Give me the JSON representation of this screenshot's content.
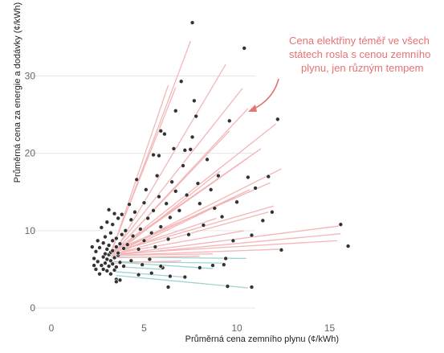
{
  "chart_data": {
    "type": "scatter",
    "xlabel": "Průměrná cena zemního plynu (¢/kWh)",
    "ylabel": "Průměrná cena za energie a dodávky (¢/kWh)",
    "xlim": [
      0,
      16
    ],
    "ylim": [
      0,
      37
    ],
    "xticks": [
      0,
      5,
      10,
      15
    ],
    "yticks": [
      0,
      10,
      20,
      30
    ],
    "grid": true,
    "annotation": {
      "lines": [
        "Cena elektřiny téměř ve všech",
        "státech rosla s cenou zemního",
        "plynu, jen různým tempem"
      ],
      "color": "#e57373"
    },
    "colors": {
      "points": "#333333",
      "rising_lines": "#f4b6b6",
      "falling_lines": "#9fd4d0"
    },
    "points": [
      [
        2.2,
        7.9
      ],
      [
        2.3,
        5.5
      ],
      [
        2.3,
        6.4
      ],
      [
        2.4,
        5.0
      ],
      [
        2.4,
        7.3
      ],
      [
        2.5,
        8.7
      ],
      [
        2.5,
        6.0
      ],
      [
        2.6,
        4.4
      ],
      [
        2.6,
        7.8
      ],
      [
        2.7,
        5.5
      ],
      [
        2.7,
        10.4
      ],
      [
        2.8,
        6.6
      ],
      [
        2.8,
        8.4
      ],
      [
        2.8,
        5.0
      ],
      [
        2.9,
        7.0
      ],
      [
        2.9,
        9.2
      ],
      [
        2.9,
        5.8
      ],
      [
        3.0,
        6.3
      ],
      [
        3.0,
        7.6
      ],
      [
        3.0,
        4.8
      ],
      [
        3.0,
        11.1
      ],
      [
        3.1,
        12.7
      ],
      [
        3.1,
        5.4
      ],
      [
        3.1,
        8.1
      ],
      [
        3.1,
        6.9
      ],
      [
        3.2,
        7.2
      ],
      [
        3.2,
        9.7
      ],
      [
        3.2,
        4.4
      ],
      [
        3.2,
        6.1
      ],
      [
        3.3,
        8.7
      ],
      [
        3.3,
        5.7
      ],
      [
        3.3,
        7.4
      ],
      [
        3.3,
        10.8
      ],
      [
        3.4,
        6.5
      ],
      [
        3.4,
        4.9
      ],
      [
        3.4,
        12.2
      ],
      [
        3.5,
        7.9
      ],
      [
        3.5,
        5.3
      ],
      [
        3.5,
        9.0
      ],
      [
        3.5,
        3.7
      ],
      [
        3.6,
        6.8
      ],
      [
        3.6,
        11.6
      ],
      [
        3.6,
        7.1
      ],
      [
        3.7,
        8.3
      ],
      [
        3.7,
        5.9
      ],
      [
        3.8,
        12.1
      ],
      [
        3.8,
        9.5
      ],
      [
        3.9,
        7.7
      ],
      [
        3.9,
        5.4
      ],
      [
        4.0,
        10.0
      ],
      [
        4.1,
        8.2
      ],
      [
        4.2,
        13.4
      ],
      [
        4.3,
        6.1
      ],
      [
        4.3,
        11.4
      ],
      [
        4.4,
        9.3
      ],
      [
        4.5,
        12.4
      ],
      [
        4.6,
        16.6
      ],
      [
        4.7,
        7.6
      ],
      [
        4.8,
        10.2
      ],
      [
        4.9,
        5.6
      ],
      [
        5.0,
        13.6
      ],
      [
        5.0,
        8.7
      ],
      [
        5.1,
        15.3
      ],
      [
        5.2,
        11.6
      ],
      [
        5.3,
        6.3
      ],
      [
        5.4,
        9.7
      ],
      [
        5.5,
        19.8
      ],
      [
        5.5,
        12.6
      ],
      [
        5.6,
        7.9
      ],
      [
        5.7,
        17.1
      ],
      [
        5.8,
        19.7
      ],
      [
        5.8,
        14.4
      ],
      [
        5.9,
        10.5
      ],
      [
        5.9,
        22.9
      ],
      [
        6.0,
        5.2
      ],
      [
        6.1,
        22.5
      ],
      [
        6.2,
        13.5
      ],
      [
        6.3,
        8.9
      ],
      [
        6.4,
        11.7
      ],
      [
        6.5,
        16.3
      ],
      [
        6.6,
        20.6
      ],
      [
        6.7,
        25.5
      ],
      [
        6.7,
        15.1
      ],
      [
        6.9,
        12.6
      ],
      [
        7.0,
        29.3
      ],
      [
        7.1,
        18.4
      ],
      [
        7.2,
        20.4
      ],
      [
        7.3,
        14.6
      ],
      [
        7.4,
        9.5
      ],
      [
        7.5,
        20.5
      ],
      [
        7.6,
        36.9
      ],
      [
        7.6,
        22.1
      ],
      [
        7.7,
        26.8
      ],
      [
        7.8,
        24.8
      ],
      [
        7.9,
        16.1
      ],
      [
        8.0,
        13.5
      ],
      [
        8.2,
        10.7
      ],
      [
        8.4,
        19.2
      ],
      [
        8.6,
        15.3
      ],
      [
        8.8,
        12.9
      ],
      [
        9.0,
        17.1
      ],
      [
        9.2,
        11.8
      ],
      [
        9.4,
        6.4
      ],
      [
        9.6,
        24.2
      ],
      [
        9.8,
        8.7
      ],
      [
        10.0,
        13.7
      ],
      [
        10.4,
        33.6
      ],
      [
        10.6,
        16.9
      ],
      [
        10.8,
        9.4
      ],
      [
        11.0,
        15.5
      ],
      [
        11.4,
        11.3
      ],
      [
        11.7,
        17.0
      ],
      [
        11.9,
        12.4
      ],
      [
        12.2,
        24.4
      ],
      [
        12.4,
        7.5
      ],
      [
        15.6,
        10.8
      ],
      [
        16.0,
        8.0
      ],
      [
        6.3,
        2.7
      ],
      [
        9.5,
        2.8
      ],
      [
        10.8,
        2.7
      ],
      [
        3.5,
        3.4
      ],
      [
        3.7,
        3.6
      ],
      [
        5.4,
        4.5
      ],
      [
        6.4,
        4.1
      ],
      [
        7.2,
        4.0
      ],
      [
        8.0,
        5.2
      ],
      [
        8.7,
        5.5
      ],
      [
        9.3,
        5.6
      ],
      [
        4.7,
        4.3
      ],
      [
        5.9,
        5.4
      ]
    ],
    "trend_lines": [
      [
        3.2,
        7.2,
        6.7,
        28.5
      ],
      [
        3.2,
        7.0,
        7.5,
        34.5
      ],
      [
        3.3,
        7.6,
        6.3,
        28.8
      ],
      [
        3.3,
        6.8,
        9.4,
        31.5
      ],
      [
        3.4,
        7.5,
        10.3,
        28.4
      ],
      [
        3.3,
        7.0,
        10.6,
        25.8
      ],
      [
        3.2,
        6.9,
        12.1,
        23.8
      ],
      [
        3.4,
        7.3,
        9.6,
        22.9
      ],
      [
        3.2,
        7.1,
        11.3,
        20.6
      ],
      [
        3.5,
        7.4,
        10.6,
        19.4
      ],
      [
        3.3,
        7.0,
        12.4,
        18.0
      ],
      [
        3.4,
        6.9,
        9.1,
        17.7
      ],
      [
        3.2,
        7.2,
        11.8,
        16.2
      ],
      [
        3.3,
        7.0,
        10.7,
        15.3
      ],
      [
        3.4,
        6.8,
        9.9,
        14.3
      ],
      [
        3.2,
        7.1,
        12.0,
        13.2
      ],
      [
        3.3,
        6.9,
        11.7,
        12.4
      ],
      [
        3.5,
        7.3,
        8.9,
        11.6
      ],
      [
        3.4,
        6.9,
        15.5,
        10.6
      ],
      [
        3.3,
        7.0,
        10.4,
        10.0
      ],
      [
        3.2,
        6.8,
        15.6,
        9.6
      ],
      [
        3.4,
        7.0,
        15.4,
        8.7
      ],
      [
        3.3,
        6.8,
        12.3,
        7.6
      ],
      [
        3.5,
        6.8,
        8.7,
        7.0
      ],
      [
        3.2,
        6.6,
        10.5,
        6.4
      ],
      [
        3.3,
        6.5,
        8.0,
        6.7
      ],
      [
        3.3,
        6.0,
        9.4,
        5.8
      ],
      [
        3.4,
        5.8,
        7.0,
        6.1
      ],
      [
        3.6,
        5.9,
        8.7,
        5.1
      ],
      [
        3.5,
        4.2,
        10.6,
        2.6
      ],
      [
        3.4,
        4.7,
        7.1,
        4.0
      ],
      [
        3.8,
        5.3,
        6.0,
        5.0
      ]
    ]
  }
}
